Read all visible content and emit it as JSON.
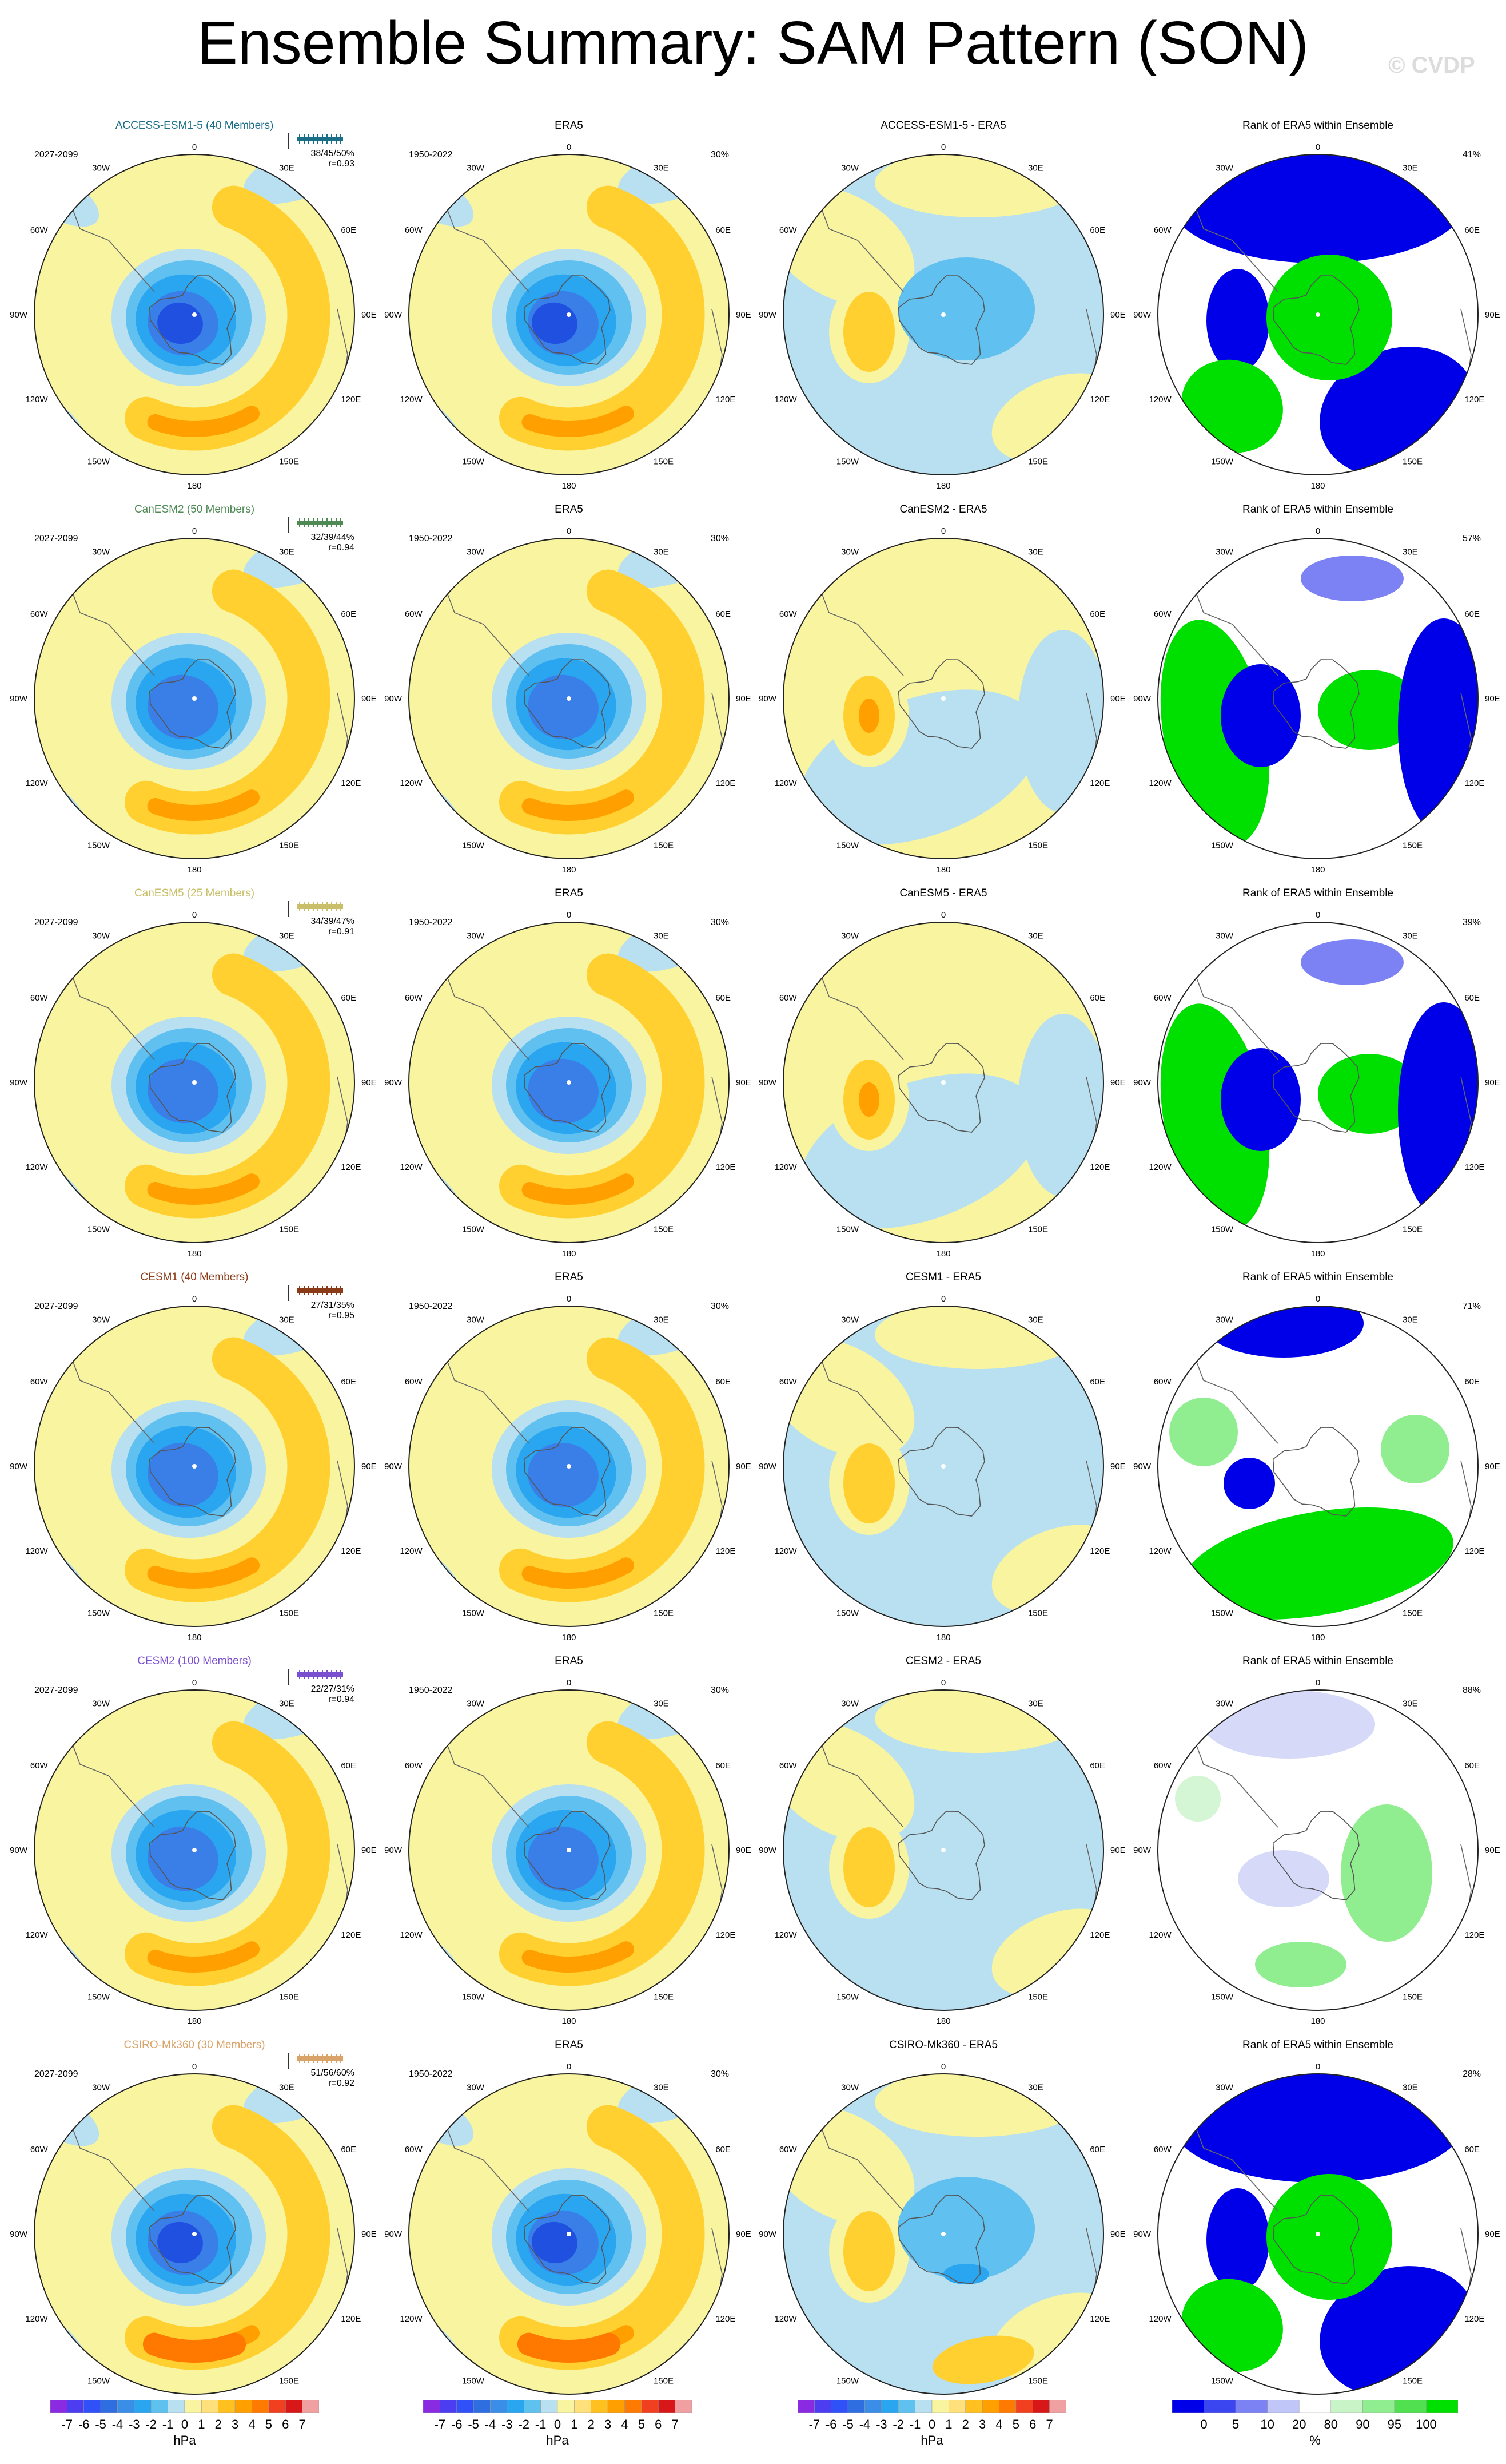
{
  "title": "Ensemble Summary: SAM Pattern (SON)",
  "watermark": "© CVDP",
  "period_model": "2027-2099",
  "period_obs": "1950-2022",
  "obs_name": "ERA5",
  "rank_title": "Rank of ERA5 within Ensemble",
  "lon_labels": {
    "top": "0",
    "bottom": "180",
    "l1": "30W",
    "r1": "30E",
    "l2": "60W",
    "r2": "60E",
    "l3": "90W",
    "r3": "90E",
    "l4": "120W",
    "r4": "120E",
    "l5": "150W",
    "r5": "150E"
  },
  "obs_pct": "30%",
  "rows": [
    {
      "model": "ACCESS-ESM1-5 (40 Members)",
      "model_color": "#1a6f86",
      "stats": "38/45/50%",
      "r": "r=0.93",
      "diff_title": "ACCESS-ESM1-5 - ERA5",
      "rank_pct": "41%"
    },
    {
      "model": "CanESM2 (50 Members)",
      "model_color": "#4f8a55",
      "stats": "32/39/44%",
      "r": "r=0.94",
      "diff_title": "CanESM2 - ERA5",
      "rank_pct": "57%"
    },
    {
      "model": "CanESM5 (25 Members)",
      "model_color": "#c8bf68",
      "stats": "34/39/47%",
      "r": "r=0.91",
      "diff_title": "CanESM5 - ERA5",
      "rank_pct": "39%"
    },
    {
      "model": "CESM1 (40 Members)",
      "model_color": "#8a3a16",
      "stats": "27/31/35%",
      "r": "r=0.95",
      "diff_title": "CESM1 - ERA5",
      "rank_pct": "71%"
    },
    {
      "model": "CESM2 (100 Members)",
      "model_color": "#7a4fd0",
      "stats": "22/27/31%",
      "r": "r=0.94",
      "diff_title": "CESM2 - ERA5",
      "rank_pct": "88%"
    },
    {
      "model": "CSIRO-Mk360 (30 Members)",
      "model_color": "#d9a36a",
      "stats": "51/56/60%",
      "r": "r=0.92",
      "diff_title": "CSIRO-Mk360 - ERA5",
      "rank_pct": "28%"
    }
  ],
  "colorbar_hpa": {
    "labels": [
      "-7",
      "-6",
      "-5",
      "-4",
      "-3",
      "-2",
      "-1",
      "0",
      "1",
      "2",
      "3",
      "4",
      "5",
      "6",
      "7"
    ],
    "unit": "hPa",
    "colors": [
      "#8a2be2",
      "#4c3ef0",
      "#3050f8",
      "#2f6ee0",
      "#3a8ee8",
      "#2aa5f0",
      "#5fc2ee",
      "#b8e0f0",
      "#f8f4a0",
      "#ffe07a",
      "#ffc020",
      "#ffa000",
      "#ff7a00",
      "#f04020",
      "#d81818",
      "#f0a0a0"
    ]
  },
  "colorbar_rank": {
    "labels": [
      "0",
      "5",
      "10",
      "20",
      "80",
      "90",
      "95",
      "100"
    ],
    "unit": "%",
    "colors": [
      "#0000e8",
      "#3c46f0",
      "#7c82f4",
      "#c0c6f8",
      "#ffffff",
      "#c8f4c8",
      "#90ee90",
      "#50e050",
      "#00e000"
    ]
  },
  "map_colors": {
    "neg7": "#2050e0",
    "neg5": "#3a7ee8",
    "neg3": "#2aa5f0",
    "neg2": "#60c0f0",
    "neg1": "#b8e0f0",
    "pos1": "#f8f4a0",
    "pos2": "#ffd030",
    "pos4": "#ffa000",
    "pos6": "#ff7800",
    "rank_blue": "#0000e8",
    "rank_lblue": "#7c82f4",
    "rank_pblue": "#d6daf8",
    "rank_green": "#00e000",
    "rank_lgreen": "#90ee90",
    "rank_pgreen": "#d4f6d4"
  }
}
